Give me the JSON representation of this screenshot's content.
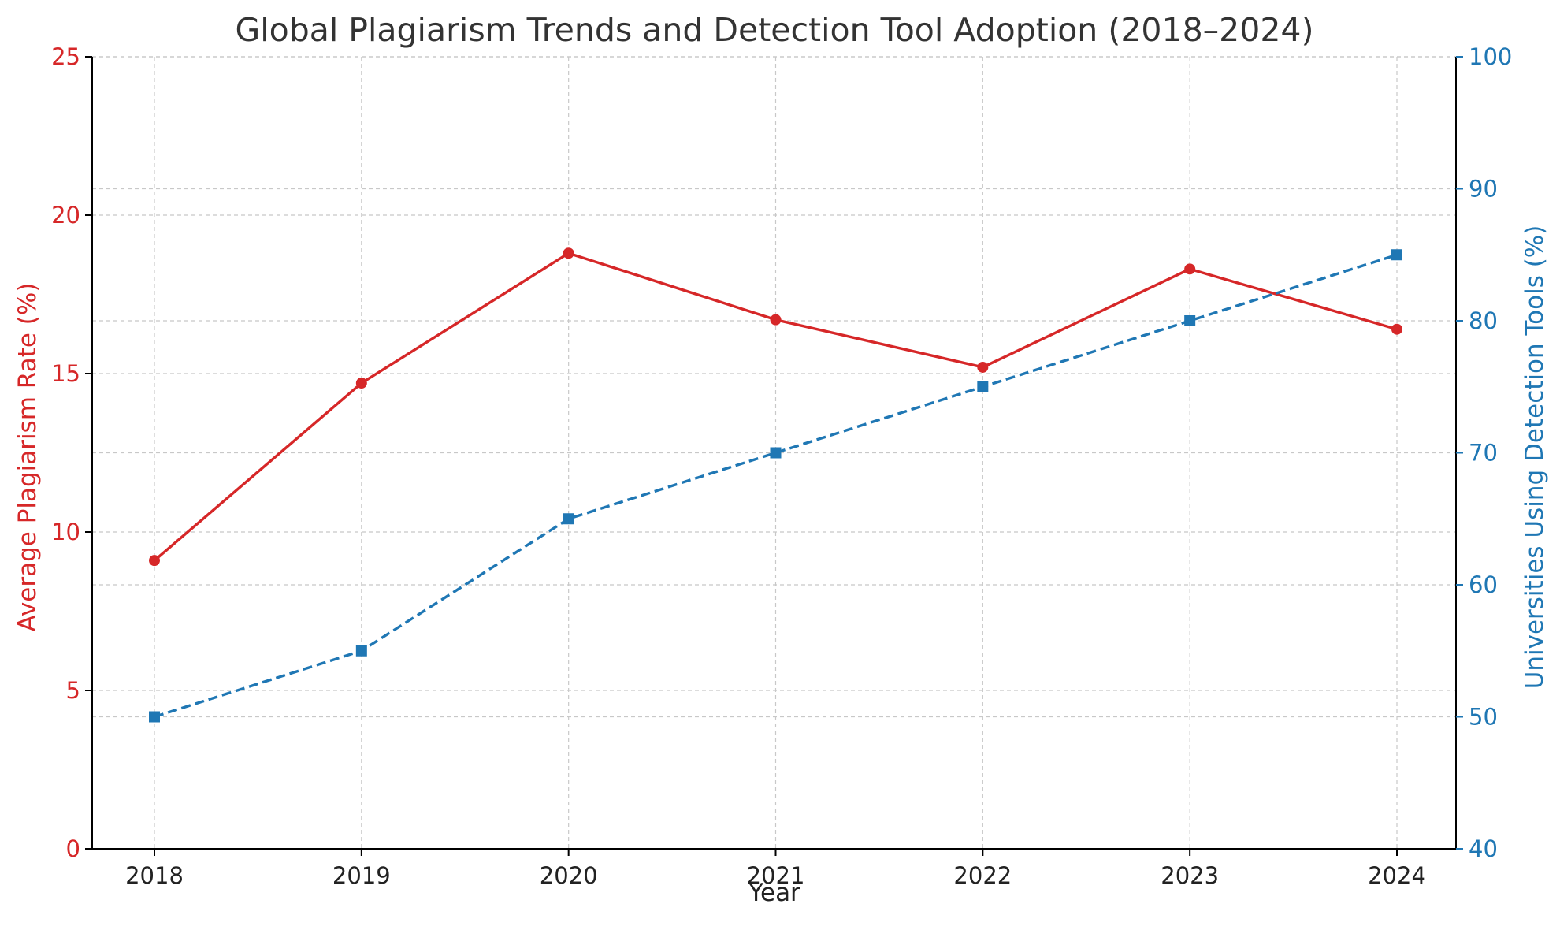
{
  "chart_data": {
    "type": "line",
    "title": "Global Plagiarism Trends and Detection Tool Adoption (2018–2024)",
    "xlabel": "Year",
    "ylabel_left": "Average Plagiarism Rate (%)",
    "ylabel_right": "Universities Using Detection Tools (%)",
    "categories": [
      "2018",
      "2019",
      "2020",
      "2021",
      "2022",
      "2023",
      "2024"
    ],
    "ylim_left": [
      0,
      25
    ],
    "ylim_right": [
      40,
      100
    ],
    "yticks_left": [
      "0",
      "5",
      "10",
      "15",
      "20",
      "25"
    ],
    "yticks_right": [
      "40",
      "50",
      "60",
      "70",
      "80",
      "90",
      "100"
    ],
    "grid": true,
    "series": [
      {
        "axis": "left",
        "color": "#d62728",
        "line_style": "solid",
        "marker": "circle",
        "values": [
          9.1,
          14.7,
          18.8,
          16.7,
          15.2,
          18.3,
          16.4
        ]
      },
      {
        "axis": "right",
        "color": "#1f77b4",
        "line_style": "dashed",
        "marker": "square",
        "values": [
          50,
          55,
          65,
          70,
          75,
          80,
          85
        ]
      }
    ],
    "colors": {
      "left_axis": "#d62728",
      "right_axis": "#1f77b4",
      "text": "#222222",
      "title": "#333333"
    }
  }
}
